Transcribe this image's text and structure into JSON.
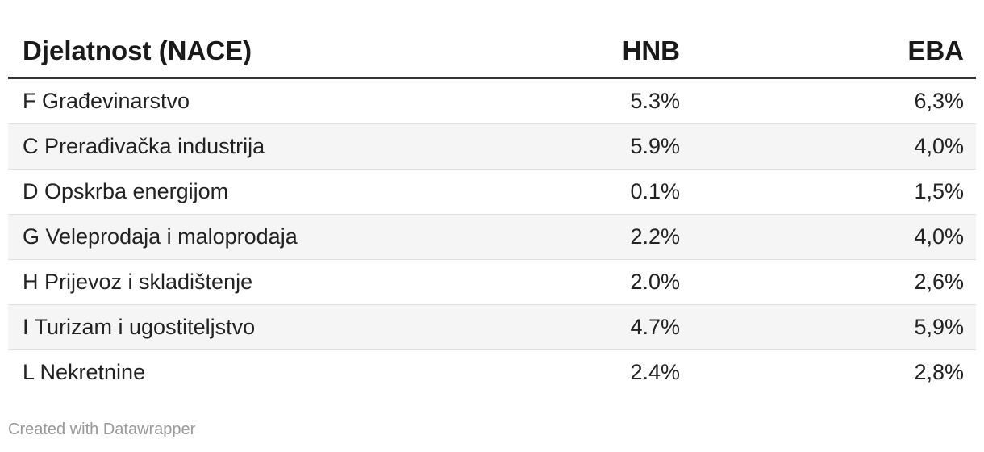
{
  "chart_data": {
    "type": "table",
    "title": "",
    "columns": [
      "Djelatnost (NACE)",
      "HNB",
      "EBA"
    ],
    "categories": [
      "F Građevinarstvo",
      "C Prerađivačka industrija",
      "D Opskrba energijom",
      "G Veleprodaja i maloprodaja",
      "H Prijevoz i skladištenje",
      "I Turizam i ugostiteljstvo",
      "L Nekretnine"
    ],
    "series": [
      {
        "name": "HNB",
        "values": [
          5.3,
          5.9,
          0.1,
          2.2,
          2.0,
          4.7,
          2.4
        ]
      },
      {
        "name": "EBA",
        "values": [
          6.3,
          4.0,
          1.5,
          4.0,
          2.6,
          5.9,
          2.8
        ]
      }
    ],
    "layout_hints": {
      "zebra_striping": true,
      "value_alignment": "right",
      "header_rule": "thick-dark",
      "grid": "horizontal-only"
    }
  },
  "table": {
    "columns": [
      {
        "label": "Djelatnost (NACE)"
      },
      {
        "label": "HNB"
      },
      {
        "label": "EBA"
      }
    ],
    "rows": [
      {
        "djelatnost": "F Građevinarstvo",
        "hnb": "5.3%",
        "eba": "6,3%"
      },
      {
        "djelatnost": "C Prerađivačka industrija",
        "hnb": "5.9%",
        "eba": "4,0%"
      },
      {
        "djelatnost": "D Opskrba energijom",
        "hnb": "0.1%",
        "eba": "1,5%"
      },
      {
        "djelatnost": "G Veleprodaja i maloprodaja",
        "hnb": "2.2%",
        "eba": "4,0%"
      },
      {
        "djelatnost": "H Prijevoz i skladištenje",
        "hnb": "2.0%",
        "eba": "2,6%"
      },
      {
        "djelatnost": "I Turizam i ugostiteljstvo",
        "hnb": "4.7%",
        "eba": "5,9%"
      },
      {
        "djelatnost": "L Nekretnine",
        "hnb": "2.4%",
        "eba": "2,8%"
      }
    ]
  },
  "footer": {
    "attribution": "Created with Datawrapper"
  },
  "colors": {
    "text": "#222222",
    "header_text": "#1a1a1a",
    "header_border": "#333333",
    "row_border": "#e0e0e0",
    "zebra_bg": "#f5f5f5",
    "footer_text": "#999999",
    "background": "#ffffff"
  }
}
